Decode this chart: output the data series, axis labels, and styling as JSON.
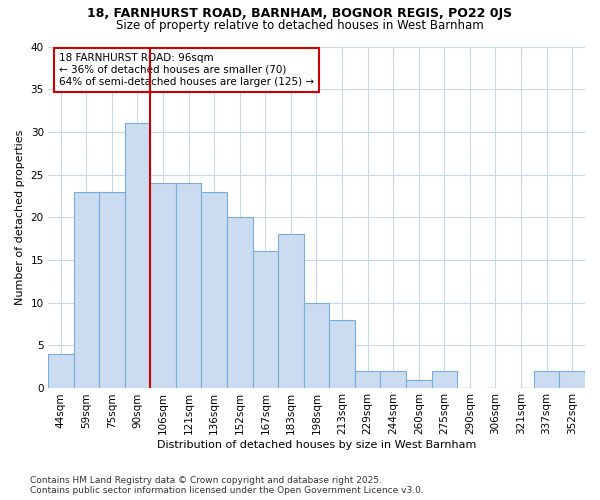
{
  "title1": "18, FARNHURST ROAD, BARNHAM, BOGNOR REGIS, PO22 0JS",
  "title2": "Size of property relative to detached houses in West Barnham",
  "xlabel": "Distribution of detached houses by size in West Barnham",
  "ylabel": "Number of detached properties",
  "categories": [
    "44sqm",
    "59sqm",
    "75sqm",
    "90sqm",
    "106sqm",
    "121sqm",
    "136sqm",
    "152sqm",
    "167sqm",
    "183sqm",
    "198sqm",
    "213sqm",
    "229sqm",
    "244sqm",
    "260sqm",
    "275sqm",
    "290sqm",
    "306sqm",
    "321sqm",
    "337sqm",
    "352sqm"
  ],
  "values": [
    4,
    23,
    23,
    31,
    24,
    24,
    23,
    20,
    16,
    18,
    10,
    8,
    2,
    2,
    1,
    2,
    0,
    0,
    0,
    2,
    2
  ],
  "bar_color": "#ccdcf0",
  "bar_edge_color": "#7aacda",
  "vline_color": "#cc0000",
  "vline_x_index": 3,
  "annotation_text": "18 FARNHURST ROAD: 96sqm\n← 36% of detached houses are smaller (70)\n64% of semi-detached houses are larger (125) →",
  "annotation_box_facecolor": "#ffffff",
  "annotation_box_edgecolor": "#cc0000",
  "footer": "Contains HM Land Registry data © Crown copyright and database right 2025.\nContains public sector information licensed under the Open Government Licence v3.0.",
  "fig_background": "#ffffff",
  "plot_background": "#ffffff",
  "grid_color": "#c8d8e8",
  "ylim": [
    0,
    40
  ],
  "yticks": [
    0,
    5,
    10,
    15,
    20,
    25,
    30,
    35,
    40
  ],
  "title1_fontsize": 9,
  "title2_fontsize": 8.5,
  "axis_label_fontsize": 8,
  "tick_fontsize": 7.5,
  "annotation_fontsize": 7.5,
  "footer_fontsize": 6.5
}
